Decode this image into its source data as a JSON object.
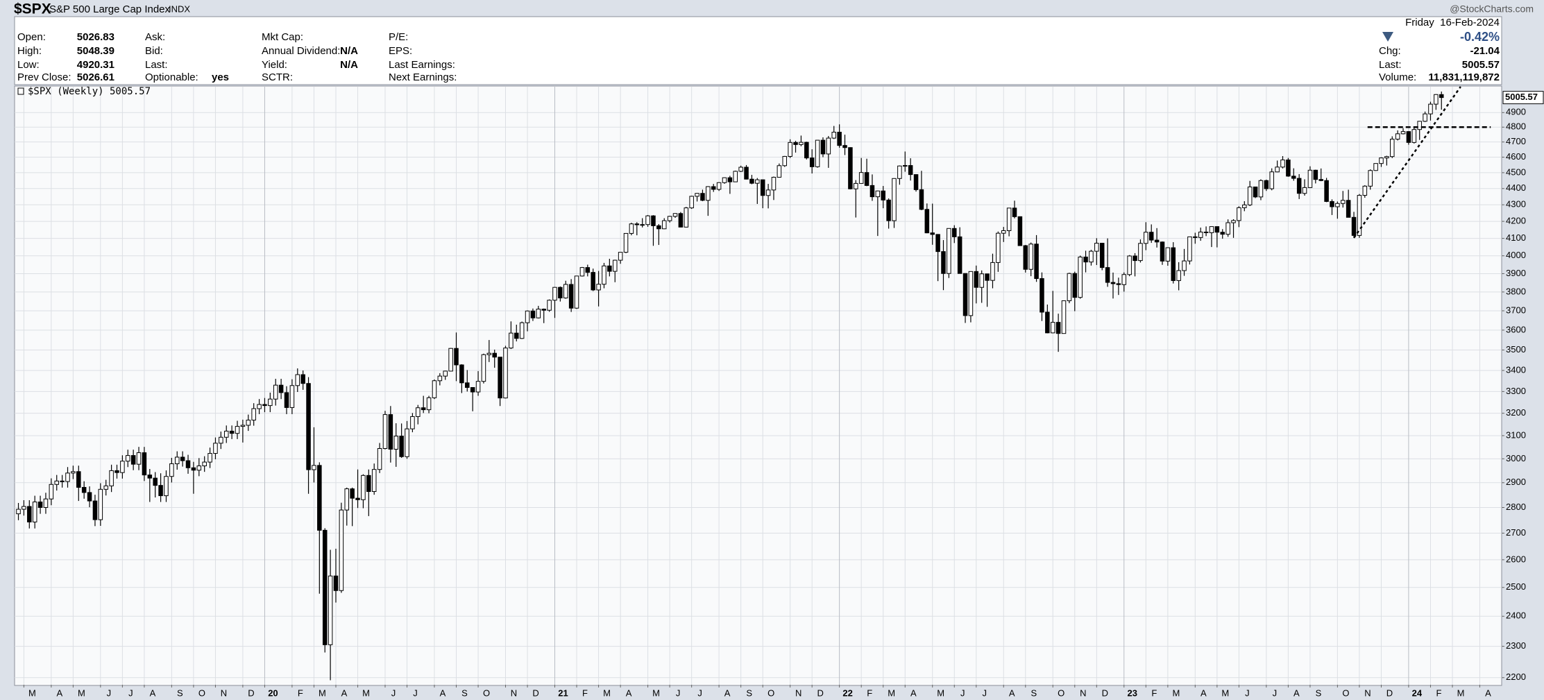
{
  "header": {
    "symbol": "$SPX",
    "name": "S&P 500 Large Cap Index",
    "exchange": "INDX",
    "watermark": "@StockCharts.com"
  },
  "quote": {
    "columns": [
      [
        {
          "label": "Open:",
          "value": "5026.83"
        },
        {
          "label": "High:",
          "value": "5048.39"
        },
        {
          "label": "Low:",
          "value": "4920.31"
        },
        {
          "label": "Prev Close:",
          "value": "5026.61"
        }
      ],
      [
        {
          "label": "Ask:"
        },
        {
          "label": "Bid:"
        },
        {
          "label": "Last:"
        },
        {
          "label": "Optionable:",
          "value": "yes"
        }
      ],
      [
        {
          "label": "Mkt Cap:"
        },
        {
          "label": "Annual Dividend:",
          "value": "N/A"
        },
        {
          "label": "Yield:",
          "value": "N/A"
        },
        {
          "label": "SCTR:"
        }
      ],
      [
        {
          "label": "P/E:"
        },
        {
          "label": "EPS:"
        },
        {
          "label": "Last Earnings:"
        },
        {
          "label": "Next Earnings:"
        }
      ]
    ],
    "date": "Friday  16-Feb-2024",
    "change_pct": "-0.42%",
    "summary": [
      {
        "label": "Chg:",
        "value": "-21.04"
      },
      {
        "label": "Last:",
        "value": "5005.57"
      },
      {
        "label": "Volume:",
        "value": "11,831,119,872"
      }
    ]
  },
  "chart_data": {
    "type": "candlestick",
    "legend": "$SPX (Weekly) 5005.57",
    "log_scale": true,
    "grid": true,
    "up_color": "#ffffff",
    "down_color": "#000000",
    "line_color": "#000000",
    "xlim": [
      -0.7,
      271
    ],
    "ylim": [
      2178,
      5083
    ],
    "yticks": [
      2200,
      2300,
      2400,
      2500,
      2600,
      2700,
      2800,
      2900,
      3000,
      3100,
      3200,
      3300,
      3400,
      3500,
      3600,
      3700,
      3800,
      3900,
      4000,
      4100,
      4200,
      4300,
      4400,
      4500,
      4600,
      4700,
      4800,
      4900
    ],
    "xticks": [
      {
        "value": 1,
        "label": "M"
      },
      {
        "value": 6,
        "label": "A"
      },
      {
        "value": 10,
        "label": "M"
      },
      {
        "value": 15,
        "label": "J"
      },
      {
        "value": 19,
        "label": "J"
      },
      {
        "value": 23,
        "label": "A"
      },
      {
        "value": 28,
        "label": "S"
      },
      {
        "value": 32,
        "label": "O"
      },
      {
        "value": 36,
        "label": "N"
      },
      {
        "value": 41,
        "label": "D"
      },
      {
        "value": 45,
        "label": "20"
      },
      {
        "value": 50,
        "label": "F"
      },
      {
        "value": 54,
        "label": "M"
      },
      {
        "value": 58,
        "label": "A"
      },
      {
        "value": 62,
        "label": "M"
      },
      {
        "value": 67,
        "label": "J"
      },
      {
        "value": 71,
        "label": "J"
      },
      {
        "value": 76,
        "label": "A"
      },
      {
        "value": 80,
        "label": "S"
      },
      {
        "value": 84,
        "label": "O"
      },
      {
        "value": 89,
        "label": "N"
      },
      {
        "value": 93,
        "label": "D"
      },
      {
        "value": 98,
        "label": "21"
      },
      {
        "value": 102,
        "label": "F"
      },
      {
        "value": 106,
        "label": "M"
      },
      {
        "value": 110,
        "label": "A"
      },
      {
        "value": 115,
        "label": "M"
      },
      {
        "value": 119,
        "label": "J"
      },
      {
        "value": 123,
        "label": "J"
      },
      {
        "value": 128,
        "label": "A"
      },
      {
        "value": 132,
        "label": "S"
      },
      {
        "value": 136,
        "label": "O"
      },
      {
        "value": 141,
        "label": "N"
      },
      {
        "value": 145,
        "label": "D"
      },
      {
        "value": 150,
        "label": "22"
      },
      {
        "value": 154,
        "label": "F"
      },
      {
        "value": 158,
        "label": "M"
      },
      {
        "value": 162,
        "label": "A"
      },
      {
        "value": 167,
        "label": "M"
      },
      {
        "value": 171,
        "label": "J"
      },
      {
        "value": 175,
        "label": "J"
      },
      {
        "value": 180,
        "label": "A"
      },
      {
        "value": 184,
        "label": "S"
      },
      {
        "value": 189,
        "label": "O"
      },
      {
        "value": 193,
        "label": "N"
      },
      {
        "value": 197,
        "label": "D"
      },
      {
        "value": 202,
        "label": "23"
      },
      {
        "value": 206,
        "label": "F"
      },
      {
        "value": 210,
        "label": "M"
      },
      {
        "value": 215,
        "label": "A"
      },
      {
        "value": 219,
        "label": "M"
      },
      {
        "value": 223,
        "label": "J"
      },
      {
        "value": 228,
        "label": "J"
      },
      {
        "value": 232,
        "label": "A"
      },
      {
        "value": 236,
        "label": "S"
      },
      {
        "value": 241,
        "label": "O"
      },
      {
        "value": 245,
        "label": "N"
      },
      {
        "value": 249,
        "label": "D"
      },
      {
        "value": 254,
        "label": "24"
      },
      {
        "value": 258,
        "label": "F"
      },
      {
        "value": 262,
        "label": "M"
      },
      {
        "value": 267,
        "label": "A"
      }
    ],
    "open": [
      2775,
      2793,
      2804,
      2743,
      2822,
      2800,
      2834,
      2893,
      2907,
      2905,
      2940,
      2946,
      2881,
      2860,
      2826,
      2752,
      2873,
      2887,
      2950,
      2942,
      2990,
      3014,
      2977,
      3026,
      2932,
      2919,
      2889,
      2847,
      2926,
      2979,
      3007,
      2992,
      2962,
      2952,
      2970,
      2986,
      3023,
      3067,
      3093,
      3120,
      3110,
      3141,
      3146,
      3169,
      3221,
      3240,
      3235,
      3265,
      3330,
      3295,
      3226,
      3328,
      3380,
      3338,
      2954,
      2972,
      2711,
      2305,
      2541,
      2489,
      2790,
      2875,
      2837,
      2831,
      2930,
      2864,
      2955,
      3044,
      3194,
      3041,
      3098,
      3009,
      3130,
      3185,
      3225,
      3216,
      3271,
      3351,
      3373,
      3397,
      3508,
      3427,
      3341,
      3319,
      3298,
      3348,
      3477,
      3484,
      3465,
      3270,
      3510,
      3585,
      3558,
      3638,
      3699,
      3663,
      3709,
      3703,
      3756,
      3825,
      3768,
      3841,
      3714,
      3887,
      3934,
      3907,
      3811,
      3842,
      3943,
      3913,
      3975,
      4020,
      4129,
      4185,
      4180,
      4181,
      4233,
      4174,
      4156,
      4204,
      4230,
      4247,
      4166,
      4281,
      4352,
      4370,
      4327,
      4412,
      4395,
      4437,
      4468,
      4442,
      4509,
      4535,
      4459,
      4433,
      4455,
      4357,
      4391,
      4471,
      4545,
      4605,
      4697,
      4683,
      4698,
      4595,
      4538,
      4712,
      4621,
      4726,
      4766,
      4677,
      4663,
      4398,
      4432,
      4501,
      4419,
      4349,
      4385,
      4329,
      4204,
      4463,
      4543,
      4546,
      4488,
      4393,
      4272,
      4132,
      4123,
      4024,
      3901,
      4158,
      4109,
      3901,
      3675,
      3912,
      3825,
      3899,
      3863,
      3962,
      4130,
      4145,
      4280,
      4228,
      4058,
      3924,
      4067,
      3873,
      3693,
      3586,
      3640,
      3583,
      3753,
      3901,
      3771,
      3993,
      3965,
      4026,
      4072,
      3934,
      3852,
      3845,
      3840,
      3895,
      3999,
      3973,
      4071,
      4136,
      4090,
      4079,
      3970,
      4046,
      3862,
      3917,
      3971,
      4109,
      4105,
      4137,
      4133,
      4169,
      4136,
      4124,
      4192,
      4205,
      4282,
      4299,
      4410,
      4348,
      4450,
      4399,
      4505,
      4536,
      4582,
      4478,
      4464,
      4370,
      4406,
      4516,
      4457,
      4450,
      4320,
      4288,
      4308,
      4327,
      4224,
      4117,
      4358,
      4415,
      4514,
      4559,
      4595,
      4604,
      4719,
      4755,
      4770,
      4697,
      4784,
      4840,
      4891,
      4959,
      5026.83
    ],
    "high": [
      2818,
      2829,
      2829,
      2847,
      2847,
      2859,
      2918,
      2932,
      2932,
      2965,
      2971,
      2971,
      2906,
      2885,
      2851,
      2898,
      2912,
      2975,
      2975,
      3015,
      3039,
      3039,
      3051,
      3051,
      2957,
      2944,
      2939,
      2951,
      3004,
      3032,
      3032,
      3017,
      2987,
      3003,
      3011,
      3048,
      3092,
      3118,
      3145,
      3145,
      3166,
      3171,
      3194,
      3246,
      3265,
      3270,
      3295,
      3360,
      3360,
      3325,
      3358,
      3410,
      3400,
      3368,
      3137,
      2985,
      2719,
      2637,
      2641,
      2819,
      2880,
      2880,
      2955,
      2935,
      2955,
      2980,
      3068,
      3211,
      3233,
      3155,
      3154,
      3165,
      3201,
      3238,
      3280,
      3280,
      3357,
      3387,
      3399,
      3510,
      3588,
      3430,
      3402,
      3320,
      3397,
      3482,
      3550,
      3502,
      3465,
      3521,
      3645,
      3628,
      3644,
      3702,
      3712,
      3726,
      3712,
      3760,
      3827,
      3830,
      3861,
      3870,
      3888,
      3937,
      3950,
      3928,
      3915,
      3960,
      3983,
      3978,
      4021,
      4130,
      4192,
      4195,
      4219,
      4238,
      4237,
      4184,
      4219,
      4233,
      4249,
      4256,
      4287,
      4355,
      4372,
      4393,
      4415,
      4429,
      4440,
      4470,
      4480,
      4513,
      4545,
      4549,
      4486,
      4466,
      4457,
      4429,
      4475,
      4559,
      4608,
      4718,
      4708,
      4743,
      4702,
      4652,
      4713,
      4731,
      4740,
      4808,
      4819,
      4749,
      4665,
      4453,
      4595,
      4590,
      4489,
      4387,
      4416,
      4339,
      4465,
      4546,
      4637,
      4593,
      4490,
      4512,
      4308,
      4307,
      4125,
      4090,
      4158,
      4177,
      4165,
      3902,
      3913,
      3945,
      3918,
      3900,
      4012,
      4140,
      4167,
      4280,
      4325,
      4230,
      4062,
      4076,
      4119,
      3907,
      3733,
      3806,
      3685,
      3754,
      3905,
      3911,
      4001,
      4029,
      4034,
      4101,
      4074,
      4100,
      3906,
      3878,
      3907,
      4004,
      4015,
      4094,
      4195,
      4182,
      4160,
      4082,
      4048,
      4078,
      3964,
      4039,
      4110,
      4133,
      4163,
      4170,
      4170,
      4170,
      4154,
      4212,
      4213,
      4291,
      4322,
      4448,
      4412,
      4458,
      4456,
      4528,
      4578,
      4607,
      4595,
      4528,
      4491,
      4458,
      4541,
      4519,
      4527,
      4467,
      4333,
      4320,
      4385,
      4393,
      4257,
      4366,
      4421,
      4521,
      4560,
      4599,
      4609,
      4738,
      4778,
      4793,
      4773,
      4802,
      4842,
      4907,
      4976,
      5030,
      5048.39
    ],
    "low": [
      2750,
      2768,
      2718,
      2718,
      2775,
      2775,
      2809,
      2868,
      2880,
      2880,
      2915,
      2826,
      2835,
      2801,
      2727,
      2728,
      2848,
      2862,
      2917,
      2917,
      2965,
      2952,
      2952,
      2907,
      2822,
      2840,
      2822,
      2822,
      2901,
      2954,
      2967,
      2937,
      2855,
      2927,
      2945,
      2961,
      2998,
      3042,
      3068,
      3085,
      3085,
      3070,
      3121,
      3144,
      3196,
      3205,
      3205,
      3235,
      3265,
      3196,
      3196,
      3298,
      3308,
      2855,
      2901,
      2478,
      2280,
      2192,
      2447,
      2481,
      2729,
      2727,
      2798,
      2797,
      2766,
      2851,
      2940,
      3040,
      2984,
      2966,
      3004,
      3000,
      3115,
      3150,
      3201,
      3200,
      3265,
      3329,
      3355,
      3395,
      3349,
      3293,
      3300,
      3209,
      3280,
      3338,
      3441,
      3413,
      3233,
      3268,
      3505,
      3543,
      3555,
      3594,
      3647,
      3660,
      3636,
      3695,
      3663,
      3749,
      3764,
      3694,
      3710,
      3884,
      3885,
      3805,
      3723,
      3820,
      3885,
      3853,
      3955,
      4015,
      4118,
      4118,
      4164,
      4168,
      4057,
      4062,
      4154,
      4193,
      4221,
      4165,
      4164,
      4275,
      4320,
      4322,
      4233,
      4379,
      4385,
      4430,
      4367,
      4441,
      4504,
      4457,
      4427,
      4305,
      4279,
      4278,
      4329,
      4469,
      4537,
      4595,
      4630,
      4672,
      4585,
      4495,
      4532,
      4600,
      4531,
      4720,
      4662,
      4614,
      4395,
      4223,
      4430,
      4415,
      4324,
      4114,
      4279,
      4157,
      4161,
      4424,
      4506,
      4450,
      4381,
      4267,
      4130,
      4063,
      3859,
      3810,
      3876,
      4073,
      3900,
      3637,
      3640,
      3739,
      3742,
      3721,
      3820,
      3910,
      4079,
      4112,
      4218,
      4057,
      3906,
      3886,
      3855,
      3647,
      3584,
      3584,
      3491,
      3590,
      3740,
      3698,
      3764,
      3907,
      3945,
      3948,
      3919,
      3828,
      3765,
      3784,
      3802,
      3886,
      3885,
      3962,
      4032,
      4074,
      4047,
      3949,
      3944,
      3846,
      3809,
      3888,
      3951,
      4069,
      4086,
      4113,
      4050,
      4048,
      4098,
      4109,
      4103,
      4166,
      4261,
      4292,
      4341,
      4328,
      4385,
      4389,
      4503,
      4527,
      4474,
      4449,
      4335,
      4356,
      4403,
      4432,
      4446,
      4316,
      4238,
      4216,
      4283,
      4223,
      4103,
      4103,
      4343,
      4393,
      4511,
      4537,
      4546,
      4594,
      4710,
      4751,
      4682,
      4690,
      4714,
      4835,
      4845,
      4919,
      4920.31
    ],
    "close": [
      2793,
      2804,
      2743,
      2822,
      2800,
      2834,
      2893,
      2907,
      2905,
      2940,
      2946,
      2881,
      2860,
      2826,
      2752,
      2873,
      2887,
      2950,
      2942,
      2990,
      3014,
      2977,
      3026,
      2932,
      2919,
      2889,
      2847,
      2926,
      2979,
      3007,
      2992,
      2962,
      2952,
      2970,
      2986,
      3023,
      3067,
      3093,
      3120,
      3110,
      3141,
      3146,
      3169,
      3221,
      3240,
      3235,
      3265,
      3330,
      3295,
      3226,
      3328,
      3380,
      3338,
      2954,
      2972,
      2711,
      2305,
      2541,
      2489,
      2790,
      2875,
      2837,
      2831,
      2930,
      2864,
      2955,
      3044,
      3194,
      3041,
      3098,
      3009,
      3130,
      3185,
      3225,
      3216,
      3271,
      3351,
      3373,
      3397,
      3508,
      3427,
      3341,
      3319,
      3298,
      3348,
      3477,
      3484,
      3465,
      3270,
      3510,
      3585,
      3558,
      3638,
      3699,
      3663,
      3709,
      3703,
      3756,
      3825,
      3768,
      3841,
      3714,
      3887,
      3934,
      3907,
      3811,
      3842,
      3943,
      3913,
      3975,
      4020,
      4129,
      4185,
      4180,
      4181,
      4233,
      4174,
      4156,
      4204,
      4230,
      4247,
      4166,
      4281,
      4352,
      4370,
      4327,
      4412,
      4395,
      4437,
      4468,
      4442,
      4509,
      4535,
      4459,
      4433,
      4455,
      4357,
      4391,
      4471,
      4545,
      4605,
      4697,
      4683,
      4698,
      4595,
      4538,
      4712,
      4621,
      4726,
      4766,
      4677,
      4663,
      4398,
      4432,
      4501,
      4419,
      4349,
      4385,
      4329,
      4204,
      4463,
      4543,
      4546,
      4488,
      4393,
      4272,
      4132,
      4123,
      4024,
      3901,
      4158,
      4109,
      3901,
      3675,
      3912,
      3825,
      3899,
      3863,
      3962,
      4130,
      4145,
      4280,
      4228,
      4058,
      3924,
      4067,
      3873,
      3693,
      3586,
      3640,
      3583,
      3753,
      3901,
      3771,
      3993,
      3965,
      4026,
      4072,
      3934,
      3852,
      3845,
      3840,
      3895,
      3999,
      3973,
      4071,
      4136,
      4090,
      4079,
      3970,
      4046,
      3862,
      3917,
      3971,
      4109,
      4105,
      4137,
      4133,
      4169,
      4136,
      4124,
      4192,
      4205,
      4282,
      4299,
      4410,
      4348,
      4450,
      4399,
      4505,
      4536,
      4582,
      4478,
      4464,
      4370,
      4406,
      4516,
      4457,
      4450,
      4320,
      4288,
      4308,
      4327,
      4224,
      4117,
      4358,
      4415,
      4514,
      4559,
      4595,
      4604,
      4719,
      4755,
      4770,
      4697,
      4784,
      4840,
      4891,
      4959,
      5027,
      5005.57
    ],
    "lines": [
      {
        "style": "dashed",
        "x": [
          246.5,
          269
        ],
        "y": [
          4800,
          4800
        ]
      },
      {
        "style": "dotted",
        "x": [
          244,
          263.5
        ],
        "y": [
          4103,
          5083
        ]
      }
    ]
  }
}
